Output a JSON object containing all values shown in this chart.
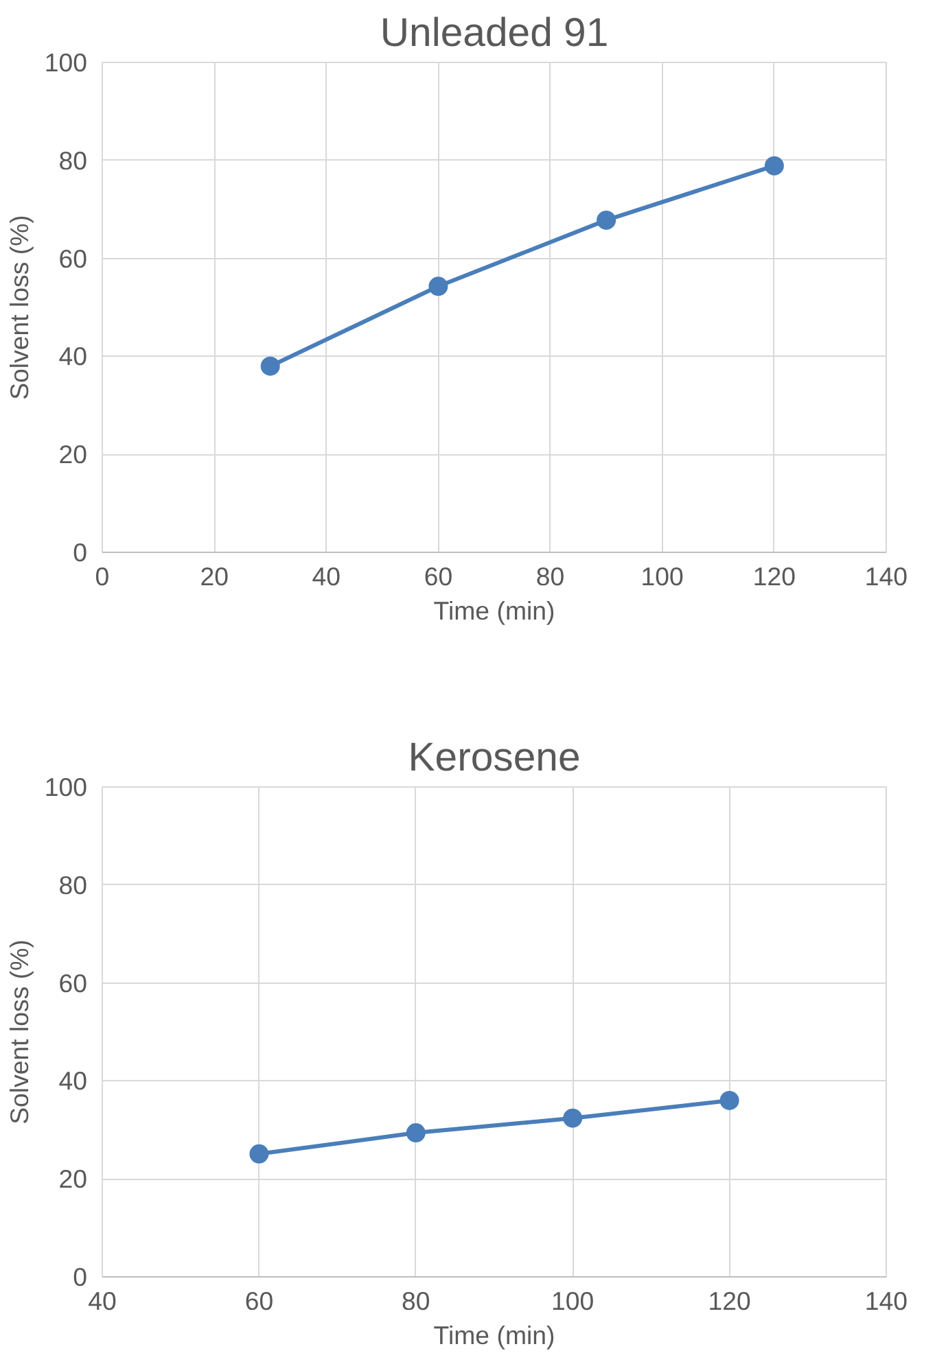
{
  "chart_data": [
    {
      "type": "line",
      "title": "Unleaded 91",
      "xlabel": "Time (min)",
      "ylabel": "Solvent loss (%)",
      "x": [
        30,
        60,
        90,
        120
      ],
      "series": [
        {
          "color": "#4a7ebb",
          "values": [
            38,
            54.3,
            67.8,
            78.9
          ]
        }
      ],
      "xlim": [
        0,
        140
      ],
      "xticks": [
        0,
        20,
        40,
        60,
        80,
        100,
        120,
        140
      ],
      "ylim": [
        0,
        100
      ],
      "yticks": [
        0,
        20,
        40,
        60,
        80,
        100
      ],
      "grid": true,
      "marker": "circle",
      "line_style": "solid"
    },
    {
      "type": "line",
      "title": "Kerosene",
      "xlabel": "Time (min)",
      "ylabel": "Solvent loss (%)",
      "x": [
        60,
        80,
        100,
        120
      ],
      "series": [
        {
          "color": "#4a7ebb",
          "values": [
            25.1,
            29.4,
            32.4,
            36
          ]
        }
      ],
      "xlim": [
        40,
        140
      ],
      "xticks": [
        40,
        60,
        80,
        100,
        120,
        140
      ],
      "ylim": [
        0,
        100
      ],
      "yticks": [
        0,
        20,
        40,
        60,
        80,
        100
      ],
      "grid": true,
      "marker": "circle",
      "line_style": "solid"
    }
  ]
}
